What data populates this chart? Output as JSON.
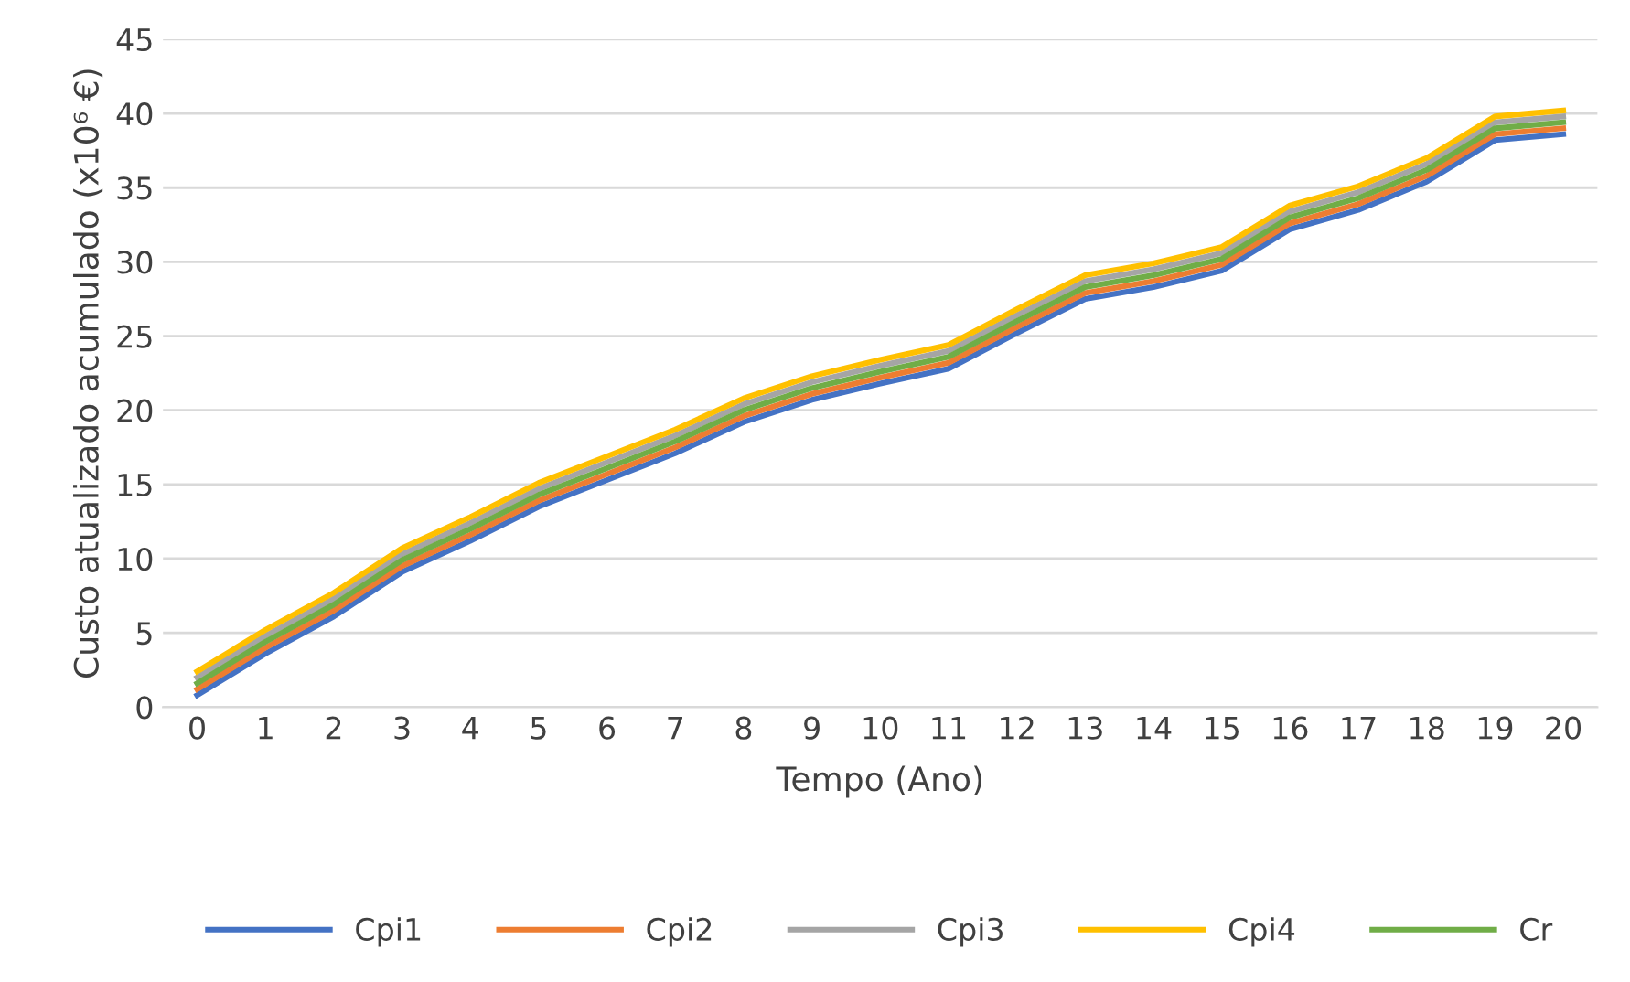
{
  "chart_data": {
    "type": "line",
    "xlabel": "Tempo (Ano)",
    "ylabel": "Custo atualizado acumulado (x10⁶ €)",
    "categories": [
      "0",
      "1",
      "2",
      "3",
      "4",
      "5",
      "6",
      "7",
      "8",
      "9",
      "10",
      "11",
      "12",
      "13",
      "14",
      "15",
      "16",
      "17",
      "18",
      "19",
      "20"
    ],
    "ylim": [
      0,
      45
    ],
    "yticks": [
      0,
      5,
      10,
      15,
      20,
      25,
      30,
      35,
      40,
      45
    ],
    "grid": "y",
    "legend": "bottom",
    "marker": "none",
    "line_style": "solid",
    "series": [
      {
        "name": "Cpi1",
        "color": "#4472c4",
        "values": [
          0.8,
          3.6,
          6.1,
          9.1,
          11.2,
          13.5,
          15.3,
          17.1,
          19.2,
          20.7,
          21.8,
          22.8,
          25.2,
          27.5,
          28.3,
          29.4,
          32.2,
          33.5,
          35.4,
          38.2,
          38.6
        ]
      },
      {
        "name": "Cpi2",
        "color": "#ed7d31",
        "values": [
          1.2,
          4.0,
          6.5,
          9.5,
          11.6,
          13.9,
          15.7,
          17.5,
          19.6,
          21.1,
          22.2,
          23.2,
          25.6,
          27.9,
          28.7,
          29.8,
          32.6,
          33.9,
          35.8,
          38.6,
          39.0
        ]
      },
      {
        "name": "Cpi3",
        "color": "#a5a5a5",
        "values": [
          2.0,
          4.8,
          7.3,
          10.3,
          12.4,
          14.7,
          16.5,
          18.3,
          20.4,
          21.9,
          23.0,
          24.0,
          26.4,
          28.7,
          29.5,
          30.6,
          33.4,
          34.7,
          36.6,
          39.4,
          39.8
        ]
      },
      {
        "name": "Cpi4",
        "color": "#ffc000",
        "values": [
          2.4,
          5.2,
          7.7,
          10.7,
          12.8,
          15.1,
          16.9,
          18.7,
          20.8,
          22.3,
          23.4,
          24.4,
          26.8,
          29.1,
          29.9,
          31.0,
          33.8,
          35.1,
          37.0,
          39.8,
          40.2
        ]
      },
      {
        "name": "Cr",
        "color": "#70ad47",
        "values": [
          1.6,
          4.4,
          6.9,
          9.9,
          12.0,
          14.3,
          16.1,
          17.9,
          20.0,
          21.5,
          22.6,
          23.6,
          26.0,
          28.3,
          29.1,
          30.2,
          33.0,
          34.3,
          36.2,
          39.0,
          39.4
        ]
      }
    ]
  }
}
